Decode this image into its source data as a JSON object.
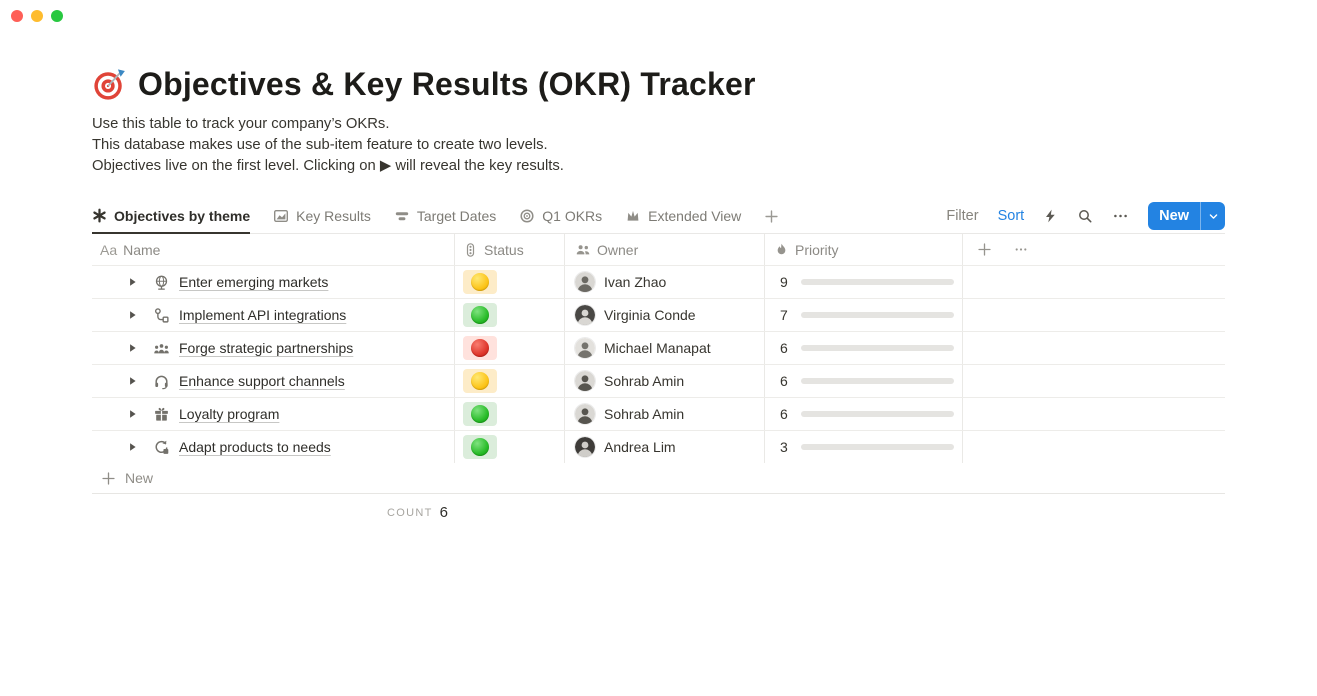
{
  "window": {
    "controls": [
      {
        "name": "close",
        "color": "#FE5F57"
      },
      {
        "name": "minimize",
        "color": "#FEBC2E"
      },
      {
        "name": "zoom",
        "color": "#28C840"
      }
    ]
  },
  "page": {
    "title": "Objectives & Key Results (OKR) Tracker",
    "title_icon": "dart-target-emoji",
    "description_lines": [
      "Use this table to track your company’s OKRs.",
      "This database makes use of the sub-item feature to create two levels.",
      "Objectives live on the first level. Clicking on ▶ will reveal the key results."
    ]
  },
  "view_tabs": {
    "tabs": [
      {
        "label": "Objectives by theme",
        "icon": "asterisk-icon",
        "active": true
      },
      {
        "label": "Key Results",
        "icon": "chart-icon",
        "active": false
      },
      {
        "label": "Target Dates",
        "icon": "timeline-icon",
        "active": false
      },
      {
        "label": "Q1 OKRs",
        "icon": "target-icon",
        "active": false
      },
      {
        "label": "Extended View",
        "icon": "crown-icon",
        "active": false
      }
    ],
    "add_view_icon": "plus-icon"
  },
  "toolbar": {
    "filter_label": "Filter",
    "sort_label": "Sort",
    "icons": [
      "lightning-icon",
      "search-icon",
      "more-icon"
    ],
    "new_button": {
      "label": "New",
      "color": "#2383E2",
      "chevron": "chevron-down-icon"
    }
  },
  "table": {
    "columns": [
      {
        "label": "Name",
        "icon": "text-icon",
        "icon_glyph": "Aa"
      },
      {
        "label": "Status",
        "icon": "traffic-light-icon"
      },
      {
        "label": "Owner",
        "icon": "people-icon"
      },
      {
        "label": "Priority",
        "icon": "flame-icon"
      }
    ],
    "priority_max": 10,
    "rows": [
      {
        "icon": "globe-icon",
        "name": "Enter emerging markets",
        "status": "yellow",
        "owner": "Ivan Zhao",
        "priority": 9
      },
      {
        "icon": "api-icon",
        "name": "Implement API integrations",
        "status": "green",
        "owner": "Virginia Conde",
        "priority": 7
      },
      {
        "icon": "partnership-icon",
        "name": "Forge strategic partnerships",
        "status": "red",
        "owner": "Michael Manapat",
        "priority": 6
      },
      {
        "icon": "headset-icon",
        "name": "Enhance support channels",
        "status": "yellow",
        "owner": "Sohrab Amin",
        "priority": 6
      },
      {
        "icon": "gift-icon",
        "name": "Loyalty program",
        "status": "green",
        "owner": "Sohrab Amin",
        "priority": 6
      },
      {
        "icon": "adapt-icon",
        "name": "Adapt products to needs",
        "status": "green",
        "owner": "Andrea Lim",
        "priority": 3
      }
    ],
    "new_row_label": "New",
    "footer": {
      "count_label": "COUNT",
      "count_value": "6"
    }
  },
  "colors": {
    "accent_blue": "#2383E2",
    "priority_bar_fill": "#548164",
    "priority_bar_track": "#E5E4E1",
    "status_yellow_bg": "#FDECC8",
    "status_green_bg": "#DBEDDB",
    "status_red_bg": "#FFE2DD"
  }
}
